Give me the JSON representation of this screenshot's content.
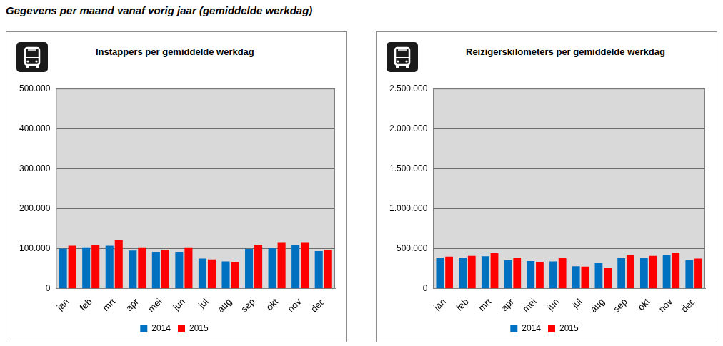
{
  "heading": "Gegevens per maand vanaf vorig jaar (gemiddelde werkdag)",
  "chart_data": [
    {
      "type": "bar",
      "title": "Instappers per gemiddelde werkdag",
      "categories": [
        "jan",
        "feb",
        "mrt",
        "apr",
        "mei",
        "jun",
        "jul",
        "aug",
        "sep",
        "okt",
        "nov",
        "dec"
      ],
      "series": [
        {
          "name": "2014",
          "color": "#0070c0",
          "values": [
            100000,
            103000,
            107000,
            95000,
            92000,
            92000,
            75000,
            68000,
            99000,
            101000,
            108000,
            94000
          ]
        },
        {
          "name": "2015",
          "color": "#ff0000",
          "values": [
            107000,
            108000,
            121000,
            103000,
            97000,
            103000,
            73000,
            67000,
            109000,
            116000,
            116000,
            97000
          ]
        }
      ],
      "ylim": [
        0,
        500000
      ],
      "yticks": [
        0,
        {
          "value": 100000,
          "label": "100.000"
        },
        {
          "value": 200000,
          "label": "200.000"
        },
        {
          "value": 300000,
          "label": "300.000"
        },
        {
          "value": 400000,
          "label": "400.000"
        },
        {
          "value": 500000,
          "label": "500.000"
        }
      ],
      "grid": true,
      "legend": "bottom"
    },
    {
      "type": "bar",
      "title": "Reizigerskilometers per gemiddelde werkdag",
      "categories": [
        "jan",
        "feb",
        "mrt",
        "apr",
        "mei",
        "jun",
        "jul",
        "aug",
        "sep",
        "okt",
        "nov",
        "dec"
      ],
      "series": [
        {
          "name": "2014",
          "color": "#0070c0",
          "values": [
            390000,
            390000,
            405000,
            355000,
            345000,
            340000,
            280000,
            320000,
            380000,
            385000,
            415000,
            355000
          ]
        },
        {
          "name": "2015",
          "color": "#ff0000",
          "values": [
            400000,
            410000,
            445000,
            390000,
            335000,
            380000,
            275000,
            260000,
            420000,
            410000,
            450000,
            375000
          ]
        }
      ],
      "ylim": [
        0,
        2500000
      ],
      "yticks": [
        0,
        {
          "value": 500000,
          "label": "500.000"
        },
        {
          "value": 1000000,
          "label": "1.000.000"
        },
        {
          "value": 1500000,
          "label": "1.500.000"
        },
        {
          "value": 2000000,
          "label": "2.000.000"
        },
        {
          "value": 2500000,
          "label": "2.500.000"
        }
      ],
      "grid": true,
      "legend": "bottom"
    }
  ]
}
